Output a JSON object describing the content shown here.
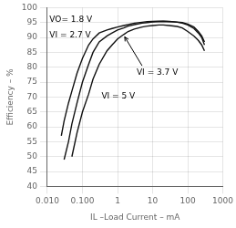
{
  "chart_data": {
    "type": "line",
    "x_label": "IL –Load Current – mA",
    "y_label": "Efficiency – %",
    "log": "x",
    "grid": true,
    "xlim": [
      0.01,
      1000
    ],
    "ylim": [
      40,
      100
    ],
    "xticks": [
      {
        "value": 0.01,
        "label": "0.010"
      },
      {
        "value": 0.1,
        "label": "0.100"
      },
      1,
      10,
      100,
      1000
    ],
    "yticks": [
      40,
      45,
      50,
      55,
      60,
      65,
      70,
      75,
      80,
      85,
      90,
      95,
      100
    ],
    "series": [
      {
        "color": "#111111",
        "x": [
          0.025,
          0.03,
          0.04,
          0.05,
          0.07,
          0.1,
          0.15,
          0.2,
          0.3,
          0.5,
          0.7,
          1.0,
          1.5,
          2.0,
          3.0,
          5.0,
          7.0,
          10,
          15,
          20,
          30,
          50,
          70,
          100,
          150,
          200,
          250,
          300
        ],
        "values": [
          57,
          62,
          68,
          72,
          78,
          83,
          87.5,
          89.5,
          91.5,
          92.5,
          93.0,
          93.5,
          94.0,
          94.3,
          94.8,
          95.1,
          95.3,
          95.4,
          95.5,
          95.5,
          95.4,
          95.2,
          95.0,
          94.5,
          93.5,
          92.0,
          90.5,
          88.5
        ]
      },
      {
        "color": "#111111",
        "x": [
          0.03,
          0.04,
          0.05,
          0.07,
          0.1,
          0.15,
          0.2,
          0.3,
          0.5,
          0.7,
          1.0,
          1.5,
          2.0,
          3.0,
          5.0,
          7.0,
          10,
          15,
          20,
          30,
          50,
          70,
          100,
          150,
          200,
          250,
          300
        ],
        "values": [
          49,
          55,
          61,
          68,
          75,
          81,
          85,
          88.5,
          90.5,
          91.5,
          92.5,
          93.2,
          93.8,
          94.3,
          94.8,
          95.0,
          95.2,
          95.3,
          95.4,
          95.3,
          95.1,
          94.8,
          94.2,
          93.0,
          91.5,
          90.0,
          87.5
        ]
      },
      {
        "color": "#111111",
        "x": [
          0.05,
          0.07,
          0.1,
          0.15,
          0.2,
          0.3,
          0.5,
          0.7,
          1.0,
          1.5,
          2.0,
          3.0,
          5.0,
          7.0,
          10,
          15,
          20,
          30,
          50,
          70,
          100,
          150,
          200,
          250,
          300
        ],
        "values": [
          50,
          58,
          65,
          71,
          76,
          81,
          85.5,
          87.5,
          89.5,
          91,
          92,
          92.8,
          93.5,
          93.8,
          94.0,
          94.2,
          94.2,
          94.0,
          93.7,
          93.2,
          92.0,
          90.5,
          89.0,
          87.5,
          85.5
        ]
      }
    ],
    "annotations": [
      {
        "text": "VO= 1.8 V",
        "x": 0.0115,
        "y": 97.2
      },
      {
        "text": "VI = 2.7 V",
        "x": 0.0115,
        "y": 92.0
      },
      {
        "text": "VI = 3.7 V",
        "x": 3.5,
        "y": 79.5
      },
      {
        "text": "VI = 5 V",
        "x": 0.35,
        "y": 71.5
      }
    ],
    "arrows": [
      {
        "x_from": 5.0,
        "y_from": 80.5,
        "x_to": 1.6,
        "y_to": 90.2
      }
    ]
  }
}
